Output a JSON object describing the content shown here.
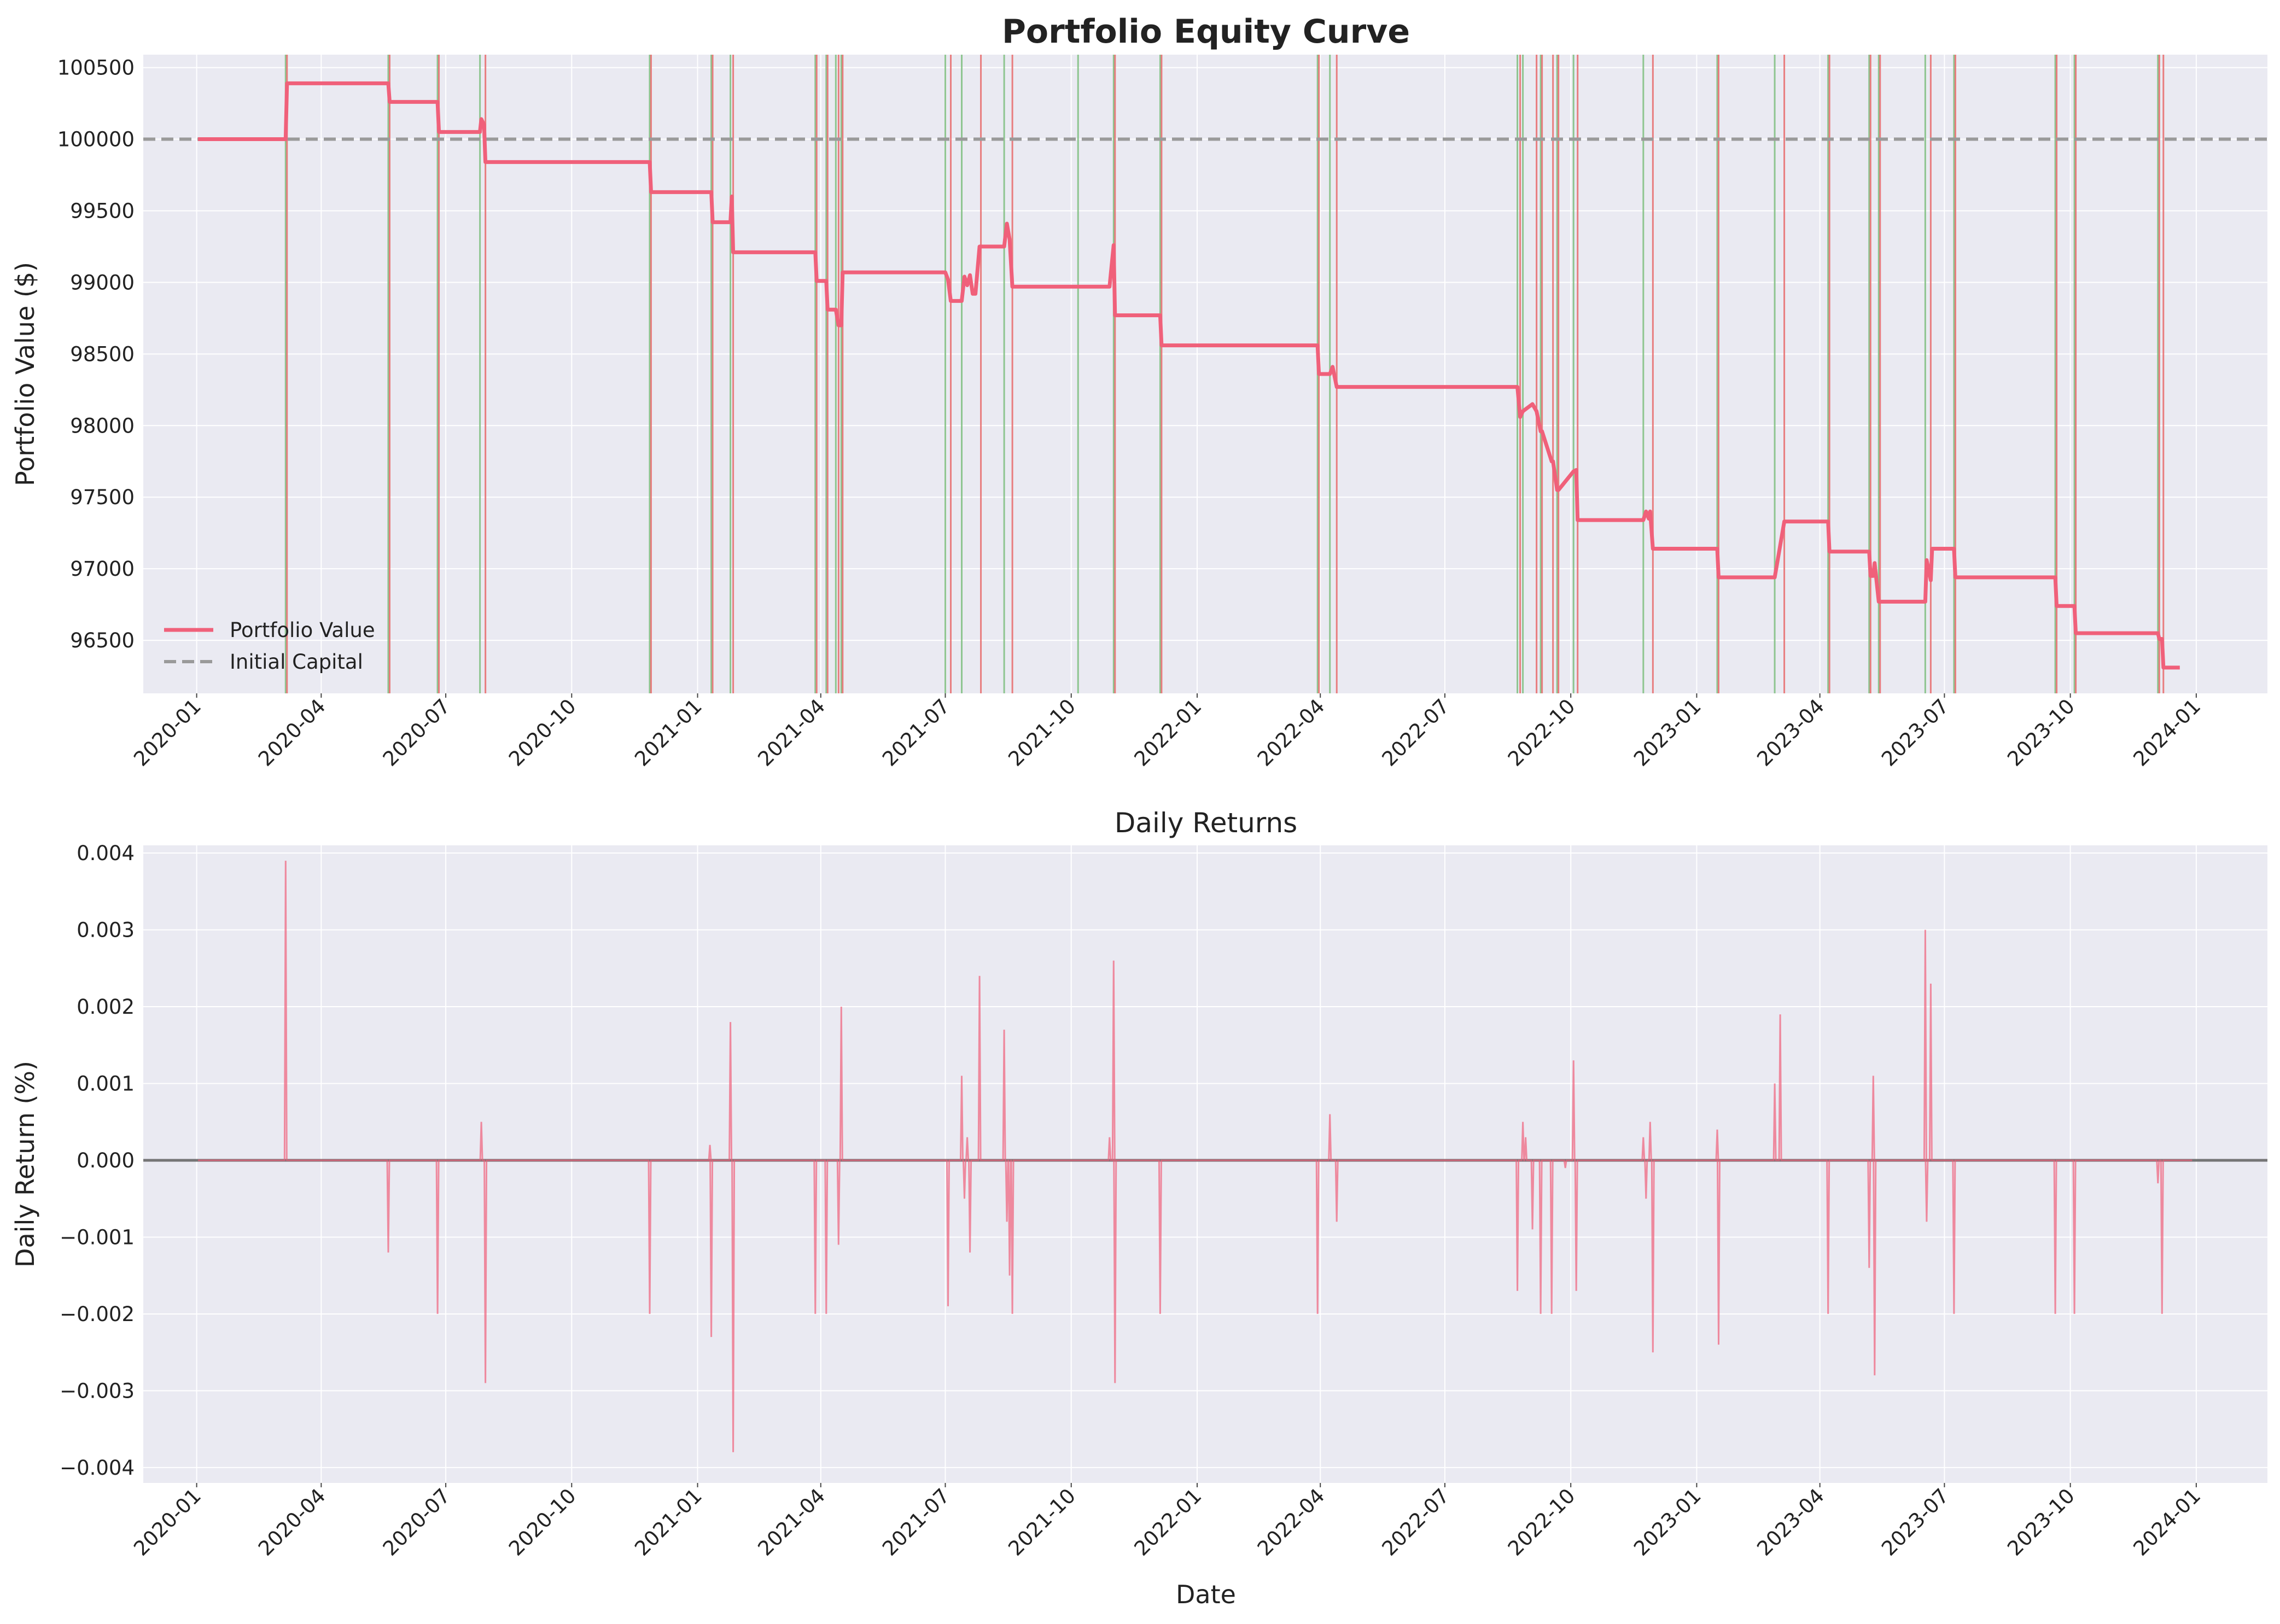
{
  "chart_data": [
    {
      "type": "line",
      "title": "Portfolio Equity Curve",
      "xlabel": "",
      "ylabel": "Portfolio Value ($)",
      "x_type": "date",
      "xlim": [
        "2019-11-23",
        "2024-02-22"
      ],
      "ylim": [
        96130,
        100590
      ],
      "x_ticks": [
        "2020-01",
        "2020-04",
        "2020-07",
        "2020-10",
        "2021-01",
        "2021-04",
        "2021-07",
        "2021-10",
        "2022-01",
        "2022-04",
        "2022-07",
        "2022-10",
        "2023-01",
        "2023-04",
        "2023-07",
        "2023-10",
        "2024-01"
      ],
      "y_ticks": [
        96500,
        97000,
        97500,
        98000,
        98500,
        99000,
        99500,
        100000,
        100500
      ],
      "grid": true,
      "legend": {
        "placement": "lower-left",
        "entries": [
          "Portfolio Value",
          "Initial Capital"
        ]
      },
      "colors": {
        "portfolio": "#f0607a",
        "initial": "#9a9a9a",
        "buy": "#7fbf7f",
        "sell": "#e86b6b",
        "background": "#eaeaf2"
      },
      "series": [
        {
          "name": "Portfolio Value",
          "x": [
            "2020-01-02",
            "2020-03-06",
            "2020-03-07",
            "2020-05-20",
            "2020-05-21",
            "2020-06-25",
            "2020-06-26",
            "2020-07-26",
            "2020-07-27",
            "2020-07-29",
            "2020-07-30",
            "2020-11-27",
            "2020-11-28",
            "2021-01-11",
            "2021-01-12",
            "2021-01-25",
            "2021-01-26",
            "2021-01-27",
            "2021-03-28",
            "2021-03-29",
            "2021-04-05",
            "2021-04-06",
            "2021-04-12",
            "2021-04-14",
            "2021-04-16",
            "2021-04-17",
            "2021-07-01",
            "2021-07-03",
            "2021-07-05",
            "2021-07-13",
            "2021-07-15",
            "2021-07-17",
            "2021-07-19",
            "2021-07-21",
            "2021-07-23",
            "2021-07-26",
            "2021-07-27",
            "2021-08-13",
            "2021-08-15",
            "2021-08-17",
            "2021-08-19",
            "2021-10-29",
            "2021-11-01",
            "2021-11-02",
            "2021-12-05",
            "2021-12-06",
            "2022-03-30",
            "2022-03-31",
            "2022-04-08",
            "2022-04-10",
            "2022-04-13",
            "2022-08-23",
            "2022-08-25",
            "2022-08-27",
            "2022-09-03",
            "2022-09-06",
            "2022-09-09",
            "2022-09-10",
            "2022-09-17",
            "2022-09-18",
            "2022-09-21",
            "2022-09-22",
            "2022-10-03",
            "2022-10-05",
            "2022-10-06",
            "2022-11-23",
            "2022-11-25",
            "2022-11-27",
            "2022-11-28",
            "2022-11-30",
            "2022-12-01",
            "2023-01-16",
            "2023-01-17",
            "2023-02-27",
            "2023-03-06",
            "2023-03-07",
            "2023-04-07",
            "2023-04-08",
            "2023-05-07",
            "2023-05-08",
            "2023-05-10",
            "2023-05-11",
            "2023-05-14",
            "2023-05-15",
            "2023-06-17",
            "2023-06-18",
            "2023-06-21",
            "2023-06-22",
            "2023-07-08",
            "2023-07-09",
            "2023-09-20",
            "2023-09-21",
            "2023-10-04",
            "2023-10-05",
            "2023-12-04",
            "2023-12-05",
            "2023-12-07",
            "2023-12-08",
            "2023-12-20"
          ],
          "values": [
            100000,
            100000,
            100390,
            100390,
            100260,
            100260,
            100050,
            100050,
            100140,
            100100,
            99840,
            99840,
            99630,
            99630,
            99420,
            99420,
            99600,
            99210,
            99210,
            99010,
            99010,
            98810,
            98810,
            98700,
            98700,
            99070,
            99070,
            99020,
            98870,
            98870,
            99040,
            98980,
            99050,
            98920,
            98920,
            99250,
            99250,
            99250,
            99410,
            99300,
            98970,
            98970,
            99260,
            98770,
            98770,
            98560,
            98560,
            98360,
            98360,
            98410,
            98270,
            98270,
            98060,
            98100,
            98150,
            98100,
            97960,
            97960,
            97750,
            97750,
            97550,
            97550,
            97680,
            97690,
            97340,
            97340,
            97400,
            97350,
            97400,
            97140,
            97140,
            97140,
            96940,
            96940,
            97330,
            97330,
            97330,
            97120,
            97120,
            96950,
            96950,
            97040,
            96770,
            96770,
            96770,
            97060,
            96920,
            97140,
            97140,
            96940,
            96940,
            96740,
            96740,
            96550,
            96550,
            96510,
            96510,
            96310,
            96310
          ]
        },
        {
          "name": "Initial Capital",
          "y": 100000
        }
      ],
      "trade_markers": {
        "buy_dates": [
          "2020-03-06",
          "2020-05-20",
          "2020-06-25",
          "2020-07-26",
          "2020-11-27",
          "2021-01-11",
          "2021-01-25",
          "2021-03-28",
          "2021-04-05",
          "2021-04-12",
          "2021-04-16",
          "2021-07-01",
          "2021-07-13",
          "2021-08-13",
          "2021-10-06",
          "2021-11-01",
          "2021-12-05",
          "2022-03-30",
          "2022-04-08",
          "2022-08-23",
          "2022-08-27",
          "2022-09-09",
          "2022-09-21",
          "2022-10-03",
          "2022-11-23",
          "2023-01-16",
          "2023-02-27",
          "2023-04-07",
          "2023-05-07",
          "2023-05-14",
          "2023-06-17",
          "2023-07-08",
          "2023-09-20",
          "2023-10-04",
          "2023-12-04"
        ],
        "sell_dates": [
          "2020-03-07",
          "2020-05-21",
          "2020-06-26",
          "2020-07-30",
          "2020-11-28",
          "2021-01-12",
          "2021-01-27",
          "2021-03-29",
          "2021-04-06",
          "2021-04-14",
          "2021-04-17",
          "2021-07-05",
          "2021-07-27",
          "2021-08-19",
          "2021-11-02",
          "2021-12-06",
          "2022-03-31",
          "2022-04-13",
          "2022-08-25",
          "2022-09-06",
          "2022-09-10",
          "2022-09-18",
          "2022-09-22",
          "2022-10-06",
          "2022-11-30",
          "2023-01-17",
          "2023-03-06",
          "2023-04-08",
          "2023-05-08",
          "2023-05-15",
          "2023-06-21",
          "2023-07-09",
          "2023-09-21",
          "2023-10-05",
          "2023-12-05",
          "2023-12-08"
        ]
      }
    },
    {
      "type": "line",
      "title": "Daily Returns",
      "xlabel": "Date",
      "ylabel": "Daily Return (%)",
      "x_type": "date",
      "xlim": [
        "2019-11-23",
        "2024-02-22"
      ],
      "ylim": [
        -0.0042,
        0.0041
      ],
      "x_ticks": [
        "2020-01",
        "2020-04",
        "2020-07",
        "2020-10",
        "2021-01",
        "2021-04",
        "2021-07",
        "2021-10",
        "2022-01",
        "2022-04",
        "2022-07",
        "2022-10",
        "2023-01",
        "2023-04",
        "2023-07",
        "2023-10",
        "2024-01"
      ],
      "y_ticks": [
        "0.004",
        "0.003",
        "0.002",
        "0.001",
        "0.000",
        "−0.001",
        "−0.002",
        "−0.003",
        "−0.004"
      ],
      "y_tick_values": [
        0.004,
        0.003,
        0.002,
        0.001,
        0,
        -0.001,
        -0.002,
        -0.003,
        -0.004
      ],
      "grid": true,
      "zero_line": 0,
      "colors": {
        "returns": "#f0607a",
        "zero": "#555555",
        "background": "#eaeaf2"
      },
      "series": [
        {
          "name": "",
          "spikes": [
            {
              "date": "2020-03-06",
              "value": 0.0039
            },
            {
              "date": "2020-05-20",
              "value": -0.0012
            },
            {
              "date": "2020-06-25",
              "value": -0.002
            },
            {
              "date": "2020-07-27",
              "value": 0.0005
            },
            {
              "date": "2020-07-30",
              "value": -0.0029
            },
            {
              "date": "2020-11-27",
              "value": -0.002
            },
            {
              "date": "2021-01-10",
              "value": 0.0002
            },
            {
              "date": "2021-01-11",
              "value": -0.0023
            },
            {
              "date": "2021-01-25",
              "value": 0.0018
            },
            {
              "date": "2021-01-27",
              "value": -0.0038
            },
            {
              "date": "2021-03-28",
              "value": -0.002
            },
            {
              "date": "2021-04-05",
              "value": -0.002
            },
            {
              "date": "2021-04-14",
              "value": -0.0011
            },
            {
              "date": "2021-04-16",
              "value": 0.002
            },
            {
              "date": "2021-07-03",
              "value": -0.0019
            },
            {
              "date": "2021-07-13",
              "value": 0.0011
            },
            {
              "date": "2021-07-15",
              "value": -0.0005
            },
            {
              "date": "2021-07-17",
              "value": 0.0003
            },
            {
              "date": "2021-07-19",
              "value": -0.0012
            },
            {
              "date": "2021-07-26",
              "value": 0.0024
            },
            {
              "date": "2021-08-13",
              "value": 0.0017
            },
            {
              "date": "2021-08-15",
              "value": -0.0008
            },
            {
              "date": "2021-08-17",
              "value": -0.0015
            },
            {
              "date": "2021-08-19",
              "value": -0.002
            },
            {
              "date": "2021-10-29",
              "value": 0.0003
            },
            {
              "date": "2021-11-01",
              "value": 0.0026
            },
            {
              "date": "2021-11-02",
              "value": -0.0029
            },
            {
              "date": "2021-12-05",
              "value": -0.002
            },
            {
              "date": "2022-03-30",
              "value": -0.002
            },
            {
              "date": "2022-04-08",
              "value": 0.0006
            },
            {
              "date": "2022-04-13",
              "value": -0.0008
            },
            {
              "date": "2022-08-23",
              "value": -0.0017
            },
            {
              "date": "2022-08-27",
              "value": 0.0005
            },
            {
              "date": "2022-08-29",
              "value": 0.0003
            },
            {
              "date": "2022-09-03",
              "value": -0.0009
            },
            {
              "date": "2022-09-09",
              "value": -0.002
            },
            {
              "date": "2022-09-17",
              "value": -0.002
            },
            {
              "date": "2022-09-27",
              "value": -0.0001
            },
            {
              "date": "2022-10-03",
              "value": 0.0013
            },
            {
              "date": "2022-10-05",
              "value": -0.0017
            },
            {
              "date": "2022-11-23",
              "value": 0.0003
            },
            {
              "date": "2022-11-25",
              "value": -0.0005
            },
            {
              "date": "2022-11-28",
              "value": 0.0005
            },
            {
              "date": "2022-11-30",
              "value": -0.0025
            },
            {
              "date": "2023-01-16",
              "value": 0.0004
            },
            {
              "date": "2023-01-17",
              "value": -0.0024
            },
            {
              "date": "2023-02-27",
              "value": 0.001
            },
            {
              "date": "2023-03-03",
              "value": 0.0019
            },
            {
              "date": "2023-04-07",
              "value": -0.002
            },
            {
              "date": "2023-05-07",
              "value": -0.0014
            },
            {
              "date": "2023-05-10",
              "value": 0.0011
            },
            {
              "date": "2023-05-11",
              "value": -0.0028
            },
            {
              "date": "2023-06-17",
              "value": 0.003
            },
            {
              "date": "2023-06-18",
              "value": -0.0008
            },
            {
              "date": "2023-06-21",
              "value": 0.0023
            },
            {
              "date": "2023-07-08",
              "value": -0.002
            },
            {
              "date": "2023-09-20",
              "value": -0.002
            },
            {
              "date": "2023-10-04",
              "value": -0.002
            },
            {
              "date": "2023-12-04",
              "value": -0.0003
            },
            {
              "date": "2023-12-07",
              "value": -0.002
            }
          ]
        }
      ]
    }
  ]
}
